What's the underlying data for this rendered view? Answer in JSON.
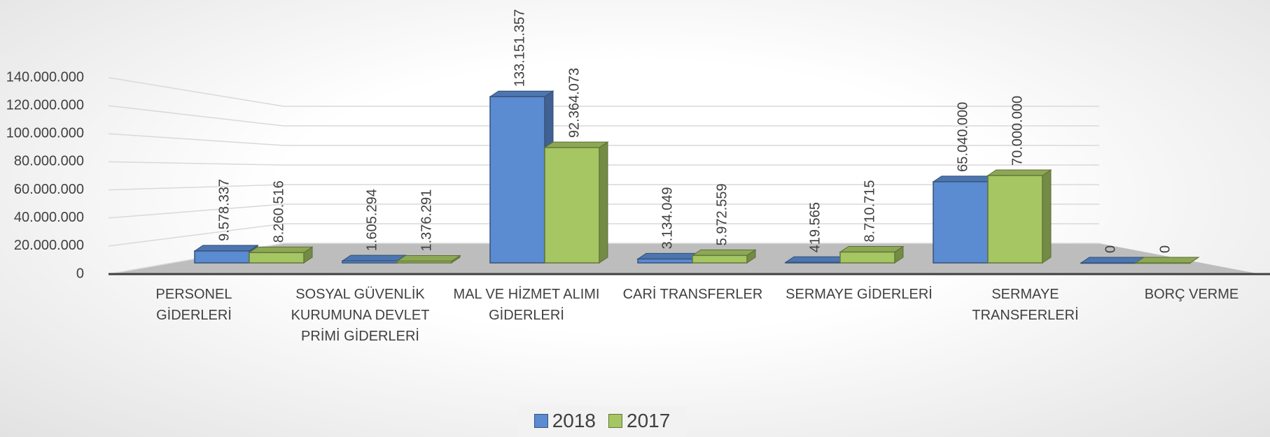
{
  "chart_data": {
    "type": "bar3d",
    "categories": [
      "PERSONEL GİDERLERİ",
      "SOSYAL GÜVENLİK KURUMUNA DEVLET PRİMİ GİDERLERİ",
      "MAL VE HİZMET ALIMI GİDERLERİ",
      "CARİ TRANSFERLER",
      "SERMAYE GİDERLERİ",
      "SERMAYE TRANSFERLERİ",
      "BORÇ VERME"
    ],
    "series": [
      {
        "name": "2018",
        "color": "#5b8bd0",
        "values": [
          9578337,
          1605294,
          133151357,
          3134049,
          419565,
          65040000,
          0
        ],
        "value_labels": [
          "9.578.337",
          "1.605.294",
          "133.151.357",
          "3.134.049",
          "419.565",
          "65.040.000",
          "0"
        ]
      },
      {
        "name": "2017",
        "color": "#a5c663",
        "values": [
          8260516,
          1376291,
          92364073,
          5972559,
          8710715,
          70000000,
          0
        ],
        "value_labels": [
          "8.260.516",
          "1.376.291",
          "92.364.073",
          "5.972.559",
          "8.710.715",
          "70.000.000",
          "0"
        ]
      }
    ],
    "ylim": [
      0,
      140000000
    ],
    "yticks": [
      0,
      {
        "value": 20000000,
        "label": "20.000.000"
      },
      {
        "value": 40000000,
        "label": "40.000.000"
      },
      {
        "value": 60000000,
        "label": "60.000.000"
      },
      {
        "value": 80000000,
        "label": "80.000.000"
      },
      {
        "value": 100000000,
        "label": "100.000.000"
      },
      {
        "value": 120000000,
        "label": "120.000.000"
      },
      {
        "value": 140000000,
        "label": "140.000.000"
      }
    ],
    "grid": true,
    "legend": "bottom"
  }
}
